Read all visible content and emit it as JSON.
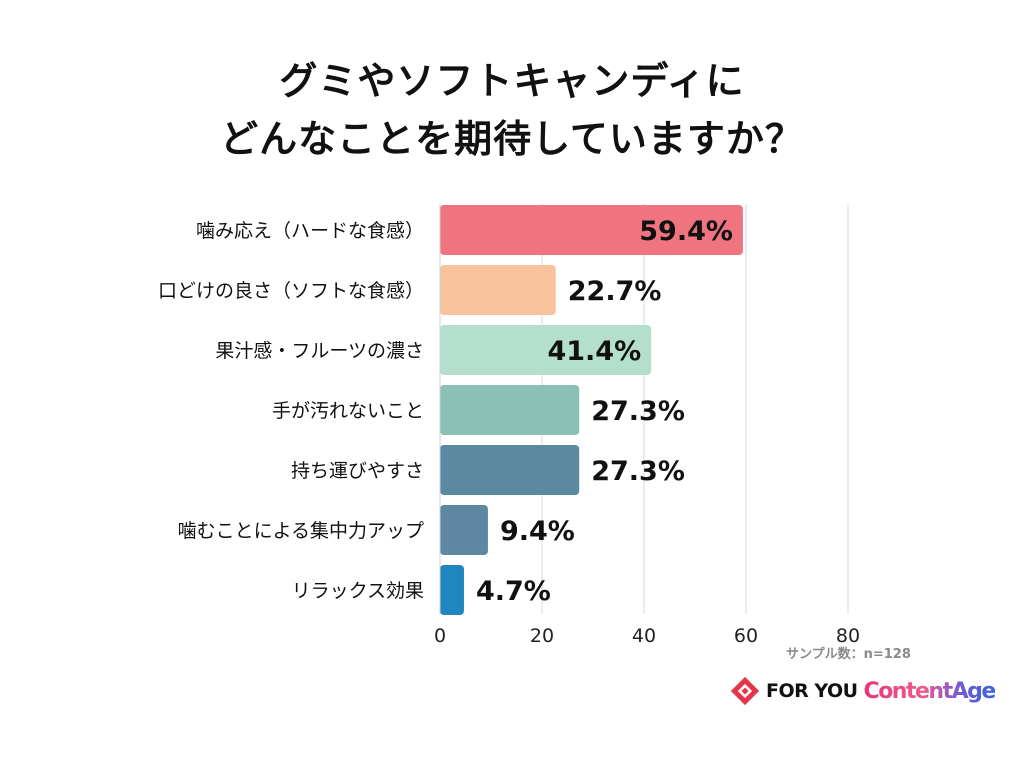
{
  "title": {
    "line1": "グミやソフトキャンディに",
    "line2": "どんなことを期待していますか？"
  },
  "sample_note": "サンプル数：n=128",
  "brand": {
    "foryou": "FOR YOU",
    "contentage": "ContentAge",
    "mark_icon": "foryou-diamond-logo-icon"
  },
  "chart_data": {
    "type": "bar",
    "orientation": "horizontal",
    "categories": [
      "噛み応え（ハードな食感）",
      "口どけの良さ（ソフトな食感）",
      "果汁感・フルーツの濃さ",
      "手が汚れないこと",
      "持ち運びやすさ",
      "噛むことによる集中力アップ",
      "リラックス効果"
    ],
    "values": [
      59.4,
      22.7,
      41.4,
      27.3,
      27.3,
      9.4,
      4.7
    ],
    "data_labels": [
      "59.4%",
      "22.7%",
      "41.4%",
      "27.3%",
      "27.3%",
      "9.4%",
      "4.7%"
    ],
    "colors": [
      "#ef7480",
      "#f8c39c",
      "#b4dfcc",
      "#8bc0b6",
      "#5b8aa0",
      "#5e88a2",
      "#1f86bf"
    ],
    "x_ticks": [
      0,
      20,
      40,
      60,
      80
    ],
    "xlim": [
      0,
      80
    ],
    "grid": true,
    "gridline_color": "#d8d8e0",
    "legend": "none"
  }
}
